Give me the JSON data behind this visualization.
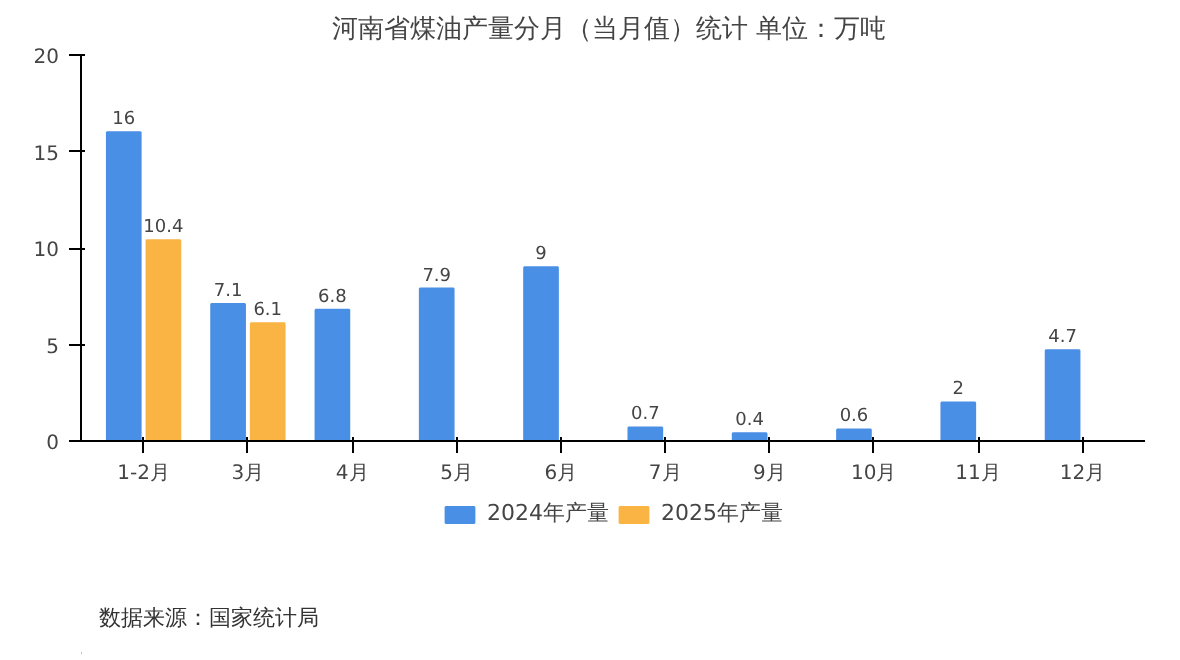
{
  "chart_data": {
    "type": "bar",
    "title": "河南省煤油产量分月（当月值）统计  单位：万吨",
    "categories": [
      "1-2月",
      "3月",
      "4月",
      "5月",
      "6月",
      "7月",
      "9月",
      "10月",
      "11月",
      "12月"
    ],
    "series": [
      {
        "name": "2024年产量",
        "color": "#4a8fe6",
        "values": [
          16,
          7.1,
          6.8,
          7.9,
          9,
          0.7,
          0.4,
          0.6,
          2,
          4.7
        ]
      },
      {
        "name": "2025年产量",
        "color": "#f9b444",
        "values": [
          10.4,
          6.1,
          null,
          null,
          null,
          null,
          null,
          null,
          null,
          null
        ]
      }
    ],
    "ylim": [
      0,
      20
    ],
    "yticks": [
      0,
      5,
      10,
      15,
      20
    ],
    "grid": false,
    "legend": "bottom",
    "data_labels": true,
    "annotations": [
      "数据来源：国家统计局"
    ]
  }
}
